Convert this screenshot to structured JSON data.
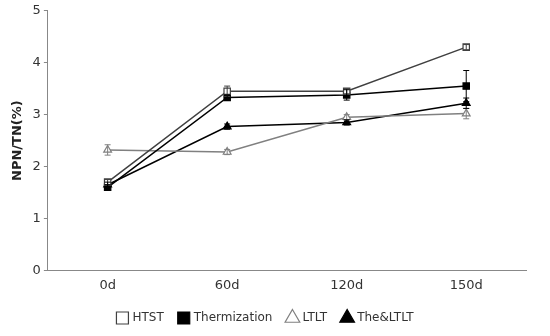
{
  "chart_data": {
    "type": "line",
    "y_label": "NPN/TN(%)",
    "categories": [
      "0d",
      "60d",
      "120d",
      "150d"
    ],
    "series": [
      {
        "name": "HTST",
        "color": "#404040",
        "marker": "square-open",
        "values": [
          1.7,
          3.45,
          3.45,
          4.3
        ],
        "error": [
          0.05,
          0.1,
          0.05,
          0.05
        ]
      },
      {
        "name": "Thermization",
        "color": "#000000",
        "marker": "square",
        "values": [
          1.6,
          3.33,
          3.38,
          3.55
        ],
        "error": [
          0.05,
          0.05,
          0.1,
          0.3
        ]
      },
      {
        "name": "LTLT",
        "color": "#808080",
        "marker": "triangle-open",
        "values": [
          2.32,
          2.28,
          2.95,
          3.02
        ],
        "error": [
          0.1,
          0.05,
          0.05,
          0.1
        ]
      },
      {
        "name": "The&LTLT",
        "color": "#000000",
        "marker": "triangle",
        "values": [
          1.65,
          2.77,
          2.85,
          3.22
        ],
        "error": [
          0.05,
          0.05,
          0.05,
          0.1
        ]
      }
    ],
    "ylim": [
      0,
      5
    ],
    "yticks": [
      0,
      1,
      2,
      3,
      4,
      5
    ],
    "grid": false,
    "legend": "bottom"
  }
}
